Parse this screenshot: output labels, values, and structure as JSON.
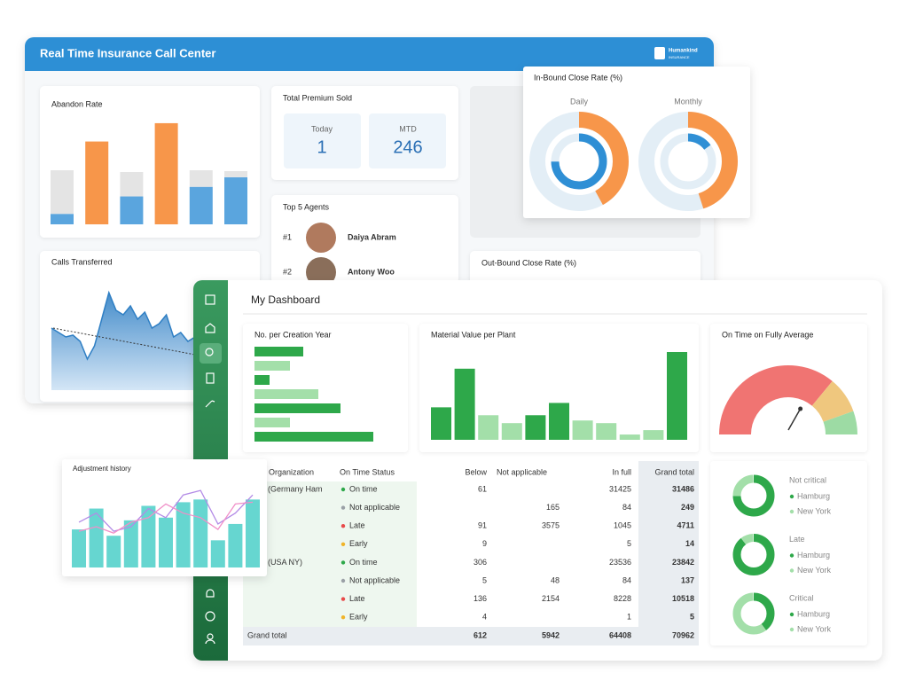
{
  "back_panel": {
    "title": "Real Time Insurance Call Center",
    "logo": "Humankind",
    "logo_sub": "INSURANCE",
    "abandon_rate": {
      "title": "Abandon Rate",
      "ylim": [
        0,
        120
      ],
      "highlight_values": [
        12,
        95,
        32,
        116,
        43,
        54
      ],
      "highlight_colors": [
        "#5aa5de",
        "#f7964a",
        "#5aa5de",
        "#f7964a",
        "#5aa5de",
        "#5aa5de"
      ],
      "rest_values": [
        50,
        0,
        28,
        0,
        19,
        7
      ],
      "rest_color": "#e4e4e4"
    },
    "total_premium": {
      "title": "Total Premium Sold",
      "today_label": "Today",
      "today": 1,
      "mtd_label": "MTD",
      "mtd": 246
    },
    "top_agents": {
      "title": "Top 5 Agents",
      "rows": [
        {
          "rank": "#1",
          "name": "Daiya Abram"
        },
        {
          "rank": "#2",
          "name": "Antony Woo"
        }
      ]
    },
    "calls_transferred": {
      "title": "Calls Transferred",
      "ylim": [
        0,
        110
      ],
      "color": "#2f7fc4",
      "values": [
        70,
        65,
        60,
        62,
        55,
        35,
        50,
        80,
        110,
        90,
        85,
        95,
        80,
        88,
        70,
        75,
        85,
        60,
        65,
        55,
        60
      ]
    },
    "outbound": {
      "title": "Out-Bound Close Rate (%)"
    }
  },
  "inbound": {
    "title": "In-Bound Close Rate (%)",
    "outer_color": "#f7964a",
    "inner_color": "#2f8fd5",
    "track_color": "#e3eef6",
    "daily": {
      "label": "Daily",
      "outer": 42,
      "inner": 75
    },
    "monthly": {
      "label": "Monthly",
      "outer": 45,
      "inner": 15
    }
  },
  "dashboard": {
    "title": "My Dashboard",
    "creation_year": {
      "title": "No. per Creation Year",
      "xlim": [
        0,
        140
      ],
      "values": [
        55,
        40,
        17,
        72,
        97,
        40,
        134
      ],
      "colors": [
        "#2ea84a",
        "#a3dfa9",
        "#2ea84a",
        "#a3dfa9",
        "#2ea84a",
        "#a3dfa9",
        "#2ea84a"
      ]
    },
    "material_value": {
      "title": "Material Value per Plant",
      "ylim": [
        0,
        100
      ],
      "values": [
        37,
        81,
        28,
        19,
        28,
        42,
        22,
        19,
        6,
        11,
        100
      ],
      "colors": [
        "#2ea84a",
        "#2ea84a",
        "#a3dfa9",
        "#a3dfa9",
        "#2ea84a",
        "#2ea84a",
        "#a3dfa9",
        "#a3dfa9",
        "#a3dfa9",
        "#a3dfa9",
        "#2ea84a"
      ]
    },
    "on_time": {
      "title": "On Time on Fully Average",
      "lim": [
        0,
        100
      ],
      "segments": [
        72,
        17,
        11
      ],
      "colors": [
        "#f07472",
        "#efc77e",
        "#9ddba4"
      ],
      "needle": 64
    },
    "table": {
      "headers": [
        "Organization",
        "On Time Status",
        "Below",
        "Not applicable",
        "In full",
        "Grand total"
      ],
      "rows": [
        {
          "org": "(Germany Ham",
          "status": "On time",
          "dot": "#2ea84a",
          "below": 61,
          "not_applicable": null,
          "in_full": 31425,
          "grand_total": 31486
        },
        {
          "org": null,
          "status": "Not applicable",
          "dot": "#9aa0a6",
          "below": null,
          "not_applicable": 165,
          "in_full": 84,
          "grand_total": 249
        },
        {
          "org": null,
          "status": "Late",
          "dot": "#e84a4a",
          "below": 91,
          "not_applicable": 3575,
          "in_full": 1045,
          "grand_total": 4711
        },
        {
          "org": null,
          "status": "Early",
          "dot": "#f0b429",
          "below": 9,
          "not_applicable": null,
          "in_full": 5,
          "grand_total": 14
        },
        {
          "org": "(USA NY)",
          "status": "On time",
          "dot": "#2ea84a",
          "below": 306,
          "not_applicable": null,
          "in_full": 23536,
          "grand_total": 23842
        },
        {
          "org": null,
          "status": "Not applicable",
          "dot": "#9aa0a6",
          "below": 5,
          "not_applicable": 48,
          "in_full": 84,
          "grand_total": 137
        },
        {
          "org": null,
          "status": "Late",
          "dot": "#e84a4a",
          "below": 136,
          "not_applicable": 2154,
          "in_full": 8228,
          "grand_total": 10518
        },
        {
          "org": null,
          "status": "Early",
          "dot": "#f0b429",
          "below": 4,
          "not_applicable": null,
          "in_full": 1,
          "grand_total": 5
        }
      ],
      "total": {
        "label": "Grand total",
        "below": 612,
        "not_applicable": 5942,
        "in_full": 64408,
        "grand_total": 70962
      }
    },
    "donuts": {
      "colors": [
        "#2ea84a",
        "#a3dfa9"
      ],
      "items": [
        {
          "title": "Not critical",
          "legend": [
            "Hamburg",
            "New York"
          ],
          "values": [
            75,
            25
          ]
        },
        {
          "title": "Late",
          "legend": [
            "Hamburg",
            "New York"
          ],
          "values": [
            90,
            10
          ]
        },
        {
          "title": "Critical",
          "legend": [
            "Hamburg",
            "New York"
          ],
          "values": [
            40,
            60
          ]
        }
      ]
    }
  },
  "adjustment": {
    "title": "Adjustment history",
    "ylim": [
      0,
      90
    ],
    "bar_color": "#66d6d0",
    "values": [
      42,
      65,
      35,
      52,
      68,
      55,
      72,
      75,
      30,
      48,
      75
    ],
    "lines": [
      {
        "color": "#b38be6",
        "values": [
          50,
          60,
          40,
          45,
          65,
          55,
          80,
          85,
          48,
          60,
          80
        ]
      },
      {
        "color": "#f08fc8",
        "values": [
          40,
          45,
          38,
          50,
          55,
          70,
          60,
          55,
          42,
          70,
          72
        ]
      }
    ]
  }
}
